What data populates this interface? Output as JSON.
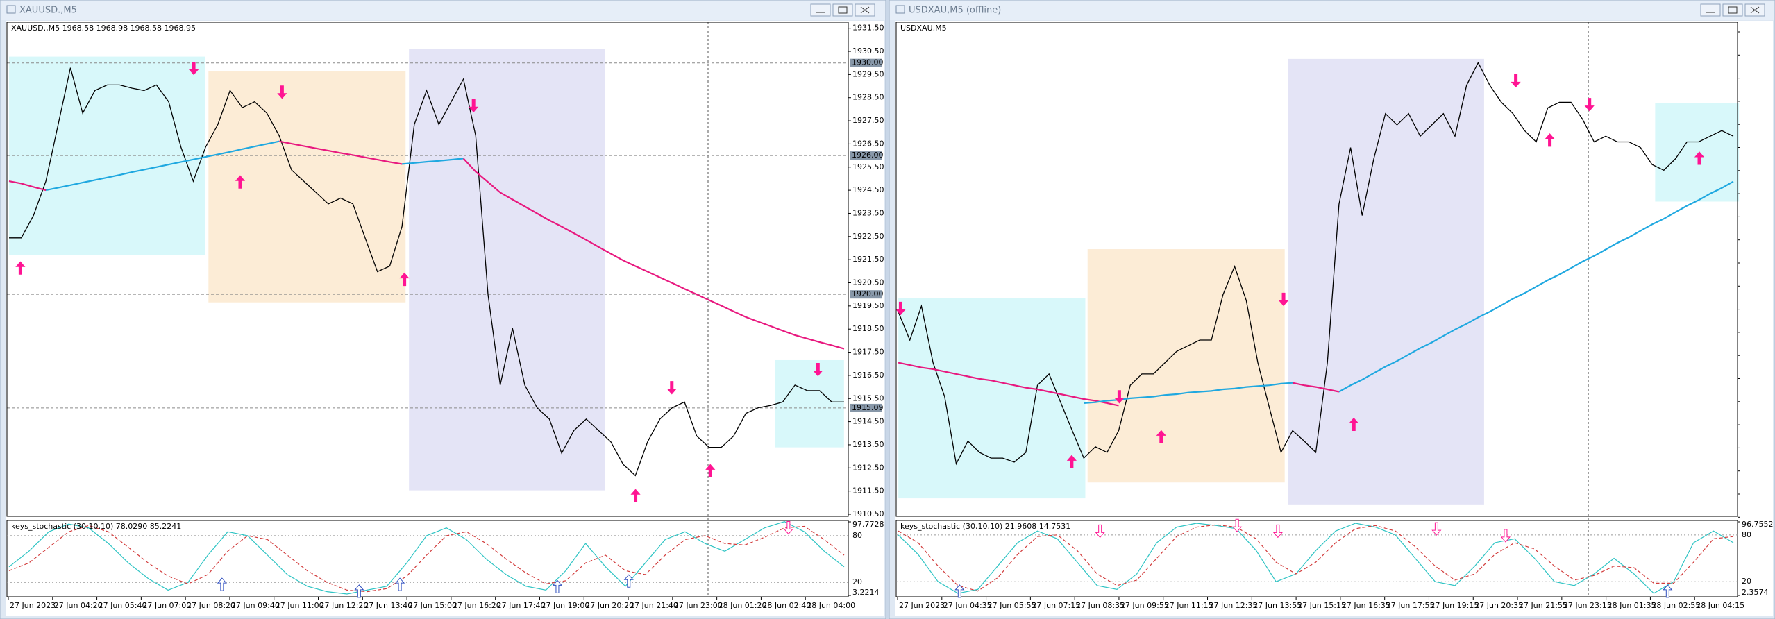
{
  "chart_data": [
    {
      "type": "line",
      "window_title": "XAUUSD.,M5",
      "title": "XAUUSD.,M5  1968.58 1968.98 1968.58 1968.95",
      "ylim": [
        1910.41,
        1931.76
      ],
      "yticks": [
        {
          "value": 1910.5,
          "label": "1910.50"
        },
        {
          "value": 1911.5,
          "label": "1911.50"
        },
        {
          "value": 1912.5,
          "label": "1912.50"
        },
        {
          "value": 1913.5,
          "label": "1913.50"
        },
        {
          "value": 1914.5,
          "label": "1914.50"
        },
        {
          "value": 1915.5,
          "label": "1915.50"
        },
        {
          "value": 1916.5,
          "label": "1916.50"
        },
        {
          "value": 1917.5,
          "label": "1917.50"
        },
        {
          "value": 1918.5,
          "label": "1918.50"
        },
        {
          "value": 1919.5,
          "label": "1919.50"
        },
        {
          "value": 1920.5,
          "label": "1920.50"
        },
        {
          "value": 1921.5,
          "label": "1921.50"
        },
        {
          "value": 1922.5,
          "label": "1922.50"
        },
        {
          "value": 1923.5,
          "label": "1923.50"
        },
        {
          "value": 1924.5,
          "label": "1924.50"
        },
        {
          "value": 1925.5,
          "label": "1925.50"
        },
        {
          "value": 1926.5,
          "label": "1926.50"
        },
        {
          "value": 1927.5,
          "label": "1927.50"
        },
        {
          "value": 1928.5,
          "label": "1928.50"
        },
        {
          "value": 1929.5,
          "label": "1929.50"
        },
        {
          "value": 1930.5,
          "label": "1930.50"
        },
        {
          "value": 1931.5,
          "label": "1931.50"
        }
      ],
      "hlines": [
        {
          "value": 1930,
          "label": "1930.00"
        },
        {
          "value": 1926,
          "label": "1926.00"
        },
        {
          "value": 1920,
          "label": "1920.00"
        },
        {
          "value": 1915.09,
          "label": "1915.09"
        }
      ],
      "time_labels": [
        "27 Jun 2023",
        "27 Jun 04:20",
        "27 Jun 05:40",
        "27 Jun 07:00",
        "27 Jun 08:20",
        "27 Jun 09:40",
        "27 Jun 11:00",
        "27 Jun 12:20",
        "27 Jun 13:40",
        "27 Jun 15:00",
        "27 Jun 16:20",
        "27 Jun 17:40",
        "27 Jun 19:00",
        "27 Jun 20:20",
        "27 Jun 21:40",
        "27 Jun 23:00",
        "28 Jun 01:20",
        "28 Jun 02:40",
        "28 Jun 04:00"
      ],
      "series": [
        {
          "color": "#000000",
          "values": [
            1922.44,
            1922.44,
            1923.42,
            1924.89,
            1927.34,
            1929.79,
            1927.83,
            1928.81,
            1929.05,
            1929.05,
            1928.91,
            1928.81,
            1929.05,
            1928.32,
            1926.36,
            1924.89,
            1926.36,
            1927.34,
            1928.81,
            1928.07,
            1928.32,
            1927.83,
            1926.85,
            1925.38,
            1924.89,
            1924.4,
            1923.91,
            1924.16,
            1923.91,
            1922.44,
            1920.98,
            1921.22,
            1922.93,
            1927.34,
            1928.81,
            1927.34,
            1928.32,
            1929.3,
            1926.85,
            1920.0,
            1916.08,
            1918.53,
            1916.08,
            1915.1,
            1914.61,
            1913.14,
            1914.12,
            1914.61,
            1914.12,
            1913.63,
            1912.66,
            1912.17,
            1913.63,
            1914.61,
            1915.1,
            1915.35,
            1913.88,
            1913.39,
            1913.39,
            1913.88,
            1914.86,
            1915.1,
            1915.2,
            1915.35,
            1916.08,
            1915.84,
            1915.84,
            1915.35,
            1915.35
          ]
        },
        {
          "color": "#1fa8e0",
          "values": [
            null,
            null,
            null,
            1924.5,
            1924.61,
            1924.72,
            1924.83,
            1924.94,
            1925.05,
            1925.16,
            1925.28,
            1925.39,
            1925.5,
            1925.61,
            1925.72,
            1925.83,
            1925.94,
            1926.05,
            1926.16,
            1926.28,
            1926.39,
            1926.5,
            1926.61,
            null,
            null,
            null,
            null,
            null,
            null,
            null,
            null,
            null,
            1925.63,
            1925.68,
            1925.73,
            1925.77,
            1925.82,
            1925.87,
            null,
            null,
            null,
            null,
            null,
            null,
            null,
            null,
            null,
            null,
            null,
            null,
            null,
            null,
            null,
            null,
            null,
            null,
            null,
            null,
            null,
            null,
            null,
            null,
            null,
            null,
            null,
            null,
            null,
            null,
            null
          ]
        },
        {
          "color": "#e8197f",
          "values": [
            1924.89,
            1924.79,
            1924.64,
            1924.5,
            null,
            null,
            null,
            null,
            null,
            null,
            null,
            null,
            null,
            null,
            null,
            null,
            null,
            null,
            null,
            null,
            null,
            null,
            1926.61,
            1926.51,
            1926.41,
            1926.31,
            1926.21,
            1926.11,
            1926.02,
            1925.92,
            1925.82,
            1925.72,
            1925.63,
            null,
            null,
            null,
            null,
            1925.87,
            1925.3,
            1924.85,
            1924.4,
            1924.1,
            1923.8,
            1923.5,
            1923.2,
            1922.93,
            1922.64,
            1922.35,
            1922.05,
            1921.76,
            1921.47,
            1921.22,
            1920.98,
            1920.73,
            1920.49,
            1920.24,
            1920.0,
            1919.75,
            1919.51,
            1919.26,
            1919.02,
            1918.82,
            1918.63,
            1918.43,
            1918.24,
            1918.09,
            1917.94,
            1917.8,
            1917.65
          ]
        }
      ],
      "indicator": {
        "type": "line",
        "title": "keys_stochastic (30,10,10) 78.0290 85.2241",
        "ylim": [
          3.2214,
          97.7728
        ],
        "yticks": [
          3.2214,
          20,
          80,
          97.7728
        ],
        "series": [
          {
            "color": "#2fc4c4",
            "style": "solid",
            "values": [
              40,
              60,
              85,
              95,
              90,
              70,
              45,
              25,
              10,
              20,
              55,
              85,
              80,
              55,
              30,
              15,
              8,
              5,
              10,
              15,
              45,
              80,
              90,
              75,
              50,
              30,
              15,
              10,
              35,
              70,
              40,
              15,
              45,
              75,
              85,
              70,
              60,
              75,
              90,
              98,
              85,
              60,
              40
            ]
          },
          {
            "color": "#d23c3c",
            "style": "dashed",
            "values": [
              35,
              45,
              65,
              85,
              93,
              85,
              65,
              45,
              28,
              18,
              30,
              60,
              80,
              75,
              55,
              35,
              20,
              10,
              8,
              12,
              28,
              55,
              80,
              85,
              70,
              50,
              32,
              18,
              22,
              45,
              55,
              35,
              30,
              55,
              75,
              80,
              70,
              68,
              78,
              90,
              92,
              75,
              55
            ]
          }
        ]
      }
    },
    {
      "type": "line",
      "window_title": "USDXAU,M5 (offline)",
      "title": "USDXAU,M5",
      "ylim": [
        0.00051757,
        0.00052368
      ],
      "time_labels": [
        "27 Jun 2023",
        "27 Jun 04:35",
        "27 Jun 05:55",
        "27 Jun 07:15",
        "27 Jun 08:35",
        "27 Jun 09:55",
        "27 Jun 11:15",
        "27 Jun 12:35",
        "27 Jun 13:55",
        "27 Jun 15:15",
        "27 Jun 16:35",
        "27 Jun 17:55",
        "27 Jun 19:15",
        "27 Jun 20:35",
        "27 Jun 21:55",
        "27 Jun 23:15",
        "28 Jun 01:35",
        "28 Jun 02:55",
        "28 Jun 04:15"
      ],
      "series": [
        {
          "color": "#000000",
          "values": [
            0.0005201,
            0.00051975,
            0.00052017,
            0.00051947,
            0.00051905,
            0.00051822,
            0.0005185,
            0.00051836,
            0.00051829,
            0.00051829,
            0.00051824,
            0.00051836,
            0.00051919,
            0.00051933,
            0.00051898,
            0.00051863,
            0.00051829,
            0.00051843,
            0.00051836,
            0.00051863,
            0.00051919,
            0.00051933,
            0.00051933,
            0.00051947,
            0.00051961,
            0.00051968,
            0.00051975,
            0.00051975,
            0.00052031,
            0.00052066,
            0.00052024,
            0.00051947,
            0.00051891,
            0.00051836,
            0.00051863,
            0.0005185,
            0.00051836,
            0.00051947,
            0.00052143,
            0.00052213,
            0.00052129,
            0.00052199,
            0.00052255,
            0.00052241,
            0.00052255,
            0.00052227,
            0.00052241,
            0.00052255,
            0.00052227,
            0.0005229,
            0.00052318,
            0.0005229,
            0.00052269,
            0.00052255,
            0.00052234,
            0.0005222,
            0.00052262,
            0.00052269,
            0.00052269,
            0.00052248,
            0.0005222,
            0.00052227,
            0.0005222,
            0.0005222,
            0.00052213,
            0.00052192,
            0.00052185,
            0.00052199,
            0.0005222,
            0.0005222,
            0.00052227,
            0.00052234,
            0.00052227
          ]
        },
        {
          "color": "#e8197f",
          "values": [
            0.00051947,
            0.00051944,
            0.00051941,
            0.00051939,
            0.00051936,
            0.00051933,
            0.0005193,
            0.00051927,
            0.00051925,
            0.00051922,
            0.00051919,
            0.00051916,
            0.00051914,
            0.00051911,
            0.00051908,
            0.00051905,
            0.00051902,
            0.000519,
            0.00051897,
            0.00051894,
            null,
            null,
            null,
            null,
            null,
            null,
            null,
            null,
            null,
            null,
            null,
            null,
            null,
            null,
            0.00051922,
            0.00051919,
            0.00051917,
            0.00051914,
            0.00051911,
            null,
            null,
            null,
            null,
            null,
            null,
            null,
            null,
            null,
            null,
            null,
            null,
            null,
            null,
            null,
            null,
            null,
            null,
            null,
            null,
            null,
            null,
            null,
            null,
            null,
            null,
            null,
            null,
            null,
            null,
            null,
            null,
            null,
            null
          ]
        },
        {
          "color": "#1fa8e0",
          "values": [
            null,
            null,
            null,
            null,
            null,
            null,
            null,
            null,
            null,
            null,
            null,
            null,
            null,
            null,
            null,
            null,
            0.00051897,
            0.00051898,
            0.000519,
            0.00051901,
            0.00051903,
            0.00051904,
            0.00051905,
            0.00051907,
            0.00051908,
            0.0005191,
            0.00051911,
            0.00051912,
            0.00051914,
            0.00051915,
            0.00051917,
            0.00051918,
            0.00051919,
            0.00051921,
            0.00051922,
            null,
            null,
            null,
            0.00051911,
            0.00051919,
            0.00051926,
            0.00051934,
            0.00051942,
            0.00051949,
            0.00051957,
            0.00051965,
            0.00051972,
            0.0005198,
            0.00051988,
            0.00051995,
            0.00052003,
            0.0005201,
            0.00052018,
            0.00052026,
            0.00052033,
            0.00052041,
            0.00052049,
            0.00052056,
            0.00052064,
            0.00052072,
            0.00052079,
            0.00052087,
            0.00052095,
            0.00052102,
            0.0005211,
            0.00052118,
            0.00052125,
            0.00052133,
            0.00052141,
            0.00052148,
            0.00052156,
            0.00052163,
            0.00052171
          ]
        }
      ],
      "indicator": {
        "type": "line",
        "title": "keys_stochastic (30,10,10) 21.9608 14.7531",
        "ylim": [
          2.3574,
          96.7552
        ],
        "yticks": [
          2.3574,
          20,
          80,
          96.7552
        ],
        "series": [
          {
            "color": "#2fc4c4",
            "style": "solid",
            "values": [
              80,
              55,
              20,
              5,
              10,
              40,
              70,
              85,
              75,
              45,
              15,
              10,
              30,
              70,
              90,
              95,
              92,
              88,
              60,
              20,
              30,
              60,
              85,
              95,
              90,
              80,
              50,
              20,
              15,
              40,
              70,
              75,
              50,
              20,
              15,
              30,
              50,
              30,
              5,
              20,
              70,
              85,
              70
            ]
          },
          {
            "color": "#d23c3c",
            "style": "dashed",
            "values": [
              85,
              70,
              40,
              15,
              8,
              25,
              55,
              78,
              80,
              60,
              30,
              15,
              22,
              50,
              78,
              90,
              93,
              90,
              75,
              45,
              30,
              45,
              70,
              88,
              92,
              85,
              65,
              40,
              22,
              30,
              55,
              70,
              62,
              40,
              22,
              28,
              40,
              38,
              18,
              18,
              45,
              75,
              78
            ]
          }
        ]
      }
    }
  ]
}
